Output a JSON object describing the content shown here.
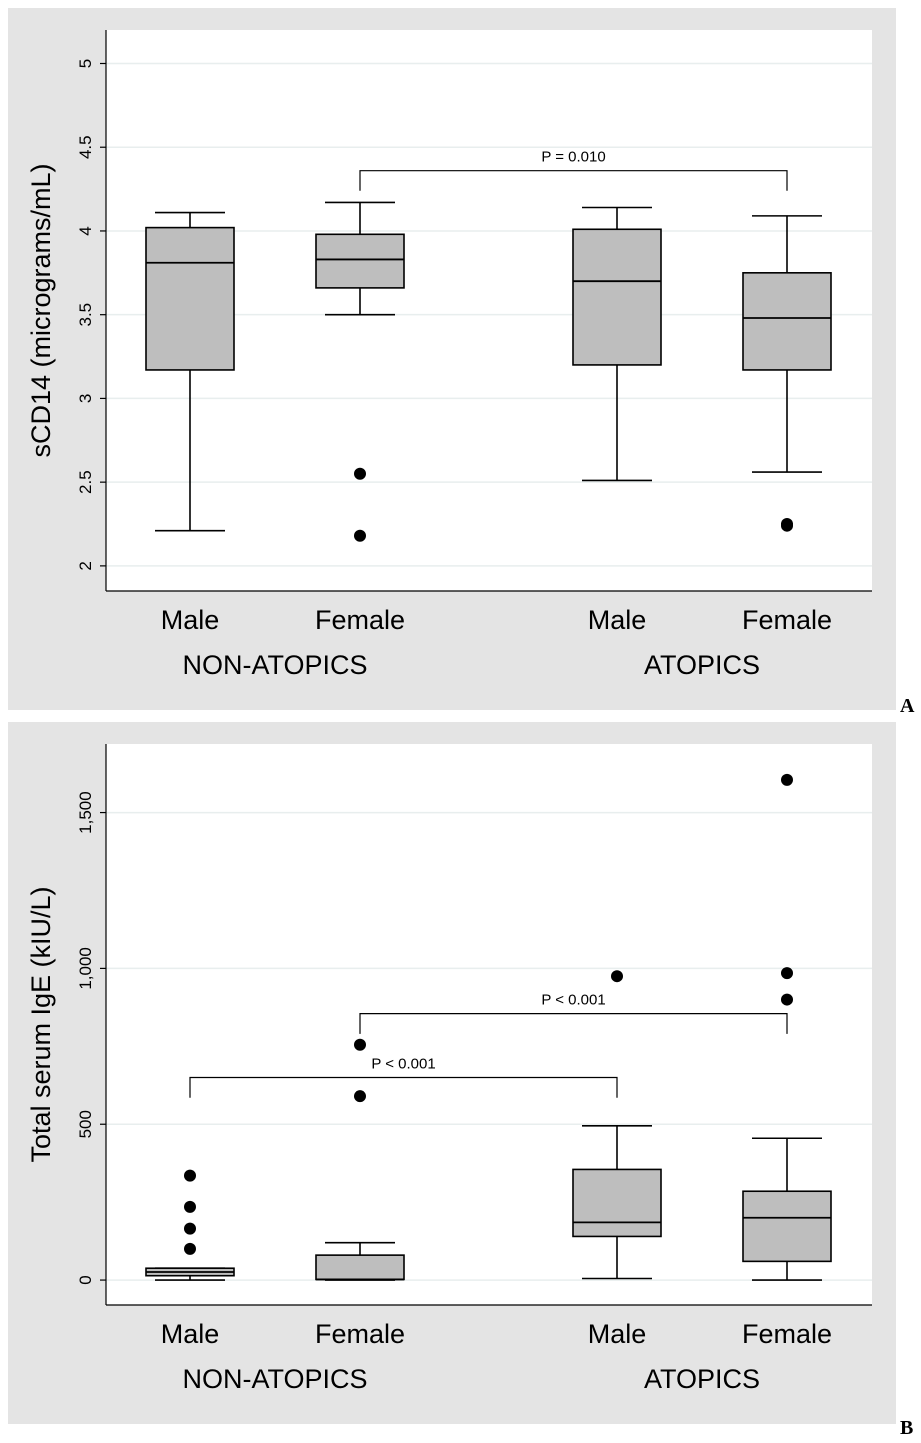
{
  "colors": {
    "panel_bg": "#e4e4e4",
    "plot_bg": "#ffffff",
    "box_fill": "#bebebe",
    "grid": "#e8eeee",
    "ink": "#000000"
  },
  "chart_data": [
    {
      "type": "box",
      "panel_letter": "A",
      "title": "",
      "ylabel": "sCD14 (micrograms/mL)",
      "ylim": [
        1.85,
        5.2
      ],
      "yticks": [
        2,
        2.5,
        3,
        3.5,
        4,
        4.5,
        5
      ],
      "ytick_labels": [
        "2",
        "2.5",
        "3",
        "3.5",
        "4",
        "4.5",
        "5"
      ],
      "grid": true,
      "groups": [
        {
          "label": "NON-ATOPICS",
          "categories": [
            "Male",
            "Female"
          ]
        },
        {
          "label": "ATOPICS",
          "categories": [
            "Male",
            "Female"
          ]
        }
      ],
      "boxes": [
        {
          "group": "NON-ATOPICS",
          "category": "Male",
          "min": 2.21,
          "q1": 3.17,
          "median": 3.81,
          "q3": 4.02,
          "max": 4.11,
          "outliers": []
        },
        {
          "group": "NON-ATOPICS",
          "category": "Female",
          "min": 3.5,
          "q1": 3.66,
          "median": 3.83,
          "q3": 3.98,
          "max": 4.17,
          "outliers": [
            2.55,
            2.18
          ]
        },
        {
          "group": "ATOPICS",
          "category": "Male",
          "min": 2.51,
          "q1": 3.2,
          "median": 3.7,
          "q3": 4.01,
          "max": 4.14,
          "outliers": []
        },
        {
          "group": "ATOPICS",
          "category": "Female",
          "min": 2.56,
          "q1": 3.17,
          "median": 3.48,
          "q3": 3.75,
          "max": 4.09,
          "outliers": [
            2.25,
            2.24
          ]
        }
      ],
      "annotations": [
        {
          "text": "P = 0.010",
          "from_box": 1,
          "to_box": 3,
          "y": 4.36,
          "drop_to": 4.24
        }
      ]
    },
    {
      "type": "box",
      "panel_letter": "B",
      "title": "",
      "ylabel": "Total serum IgE (kIU/L)",
      "ylim": [
        -80,
        1720
      ],
      "yticks": [
        0,
        500,
        1000,
        1500
      ],
      "ytick_labels": [
        "0",
        "500",
        "1,000",
        "1,500"
      ],
      "grid": true,
      "groups": [
        {
          "label": "NON-ATOPICS",
          "categories": [
            "Male",
            "Female"
          ]
        },
        {
          "label": "ATOPICS",
          "categories": [
            "Male",
            "Female"
          ]
        }
      ],
      "boxes": [
        {
          "group": "NON-ATOPICS",
          "category": "Male",
          "min": 0,
          "q1": 14,
          "median": 26,
          "q3": 38,
          "max": 38,
          "outliers": [
            335,
            235,
            165,
            100
          ]
        },
        {
          "group": "NON-ATOPICS",
          "category": "Female",
          "min": 0,
          "q1": 2,
          "median": 2,
          "q3": 80,
          "max": 120,
          "outliers": [
            755,
            590
          ]
        },
        {
          "group": "ATOPICS",
          "category": "Male",
          "min": 5,
          "q1": 140,
          "median": 185,
          "q3": 355,
          "max": 495,
          "outliers": [
            975
          ]
        },
        {
          "group": "ATOPICS",
          "category": "Female",
          "min": 0,
          "q1": 60,
          "median": 200,
          "q3": 285,
          "max": 455,
          "outliers": [
            1605,
            985,
            900
          ]
        }
      ],
      "annotations": [
        {
          "text": "P < 0.001",
          "from_box": 1,
          "to_box": 3,
          "y": 855,
          "drop_to": 790
        },
        {
          "text": "P < 0.001",
          "from_box": 0,
          "to_box": 2,
          "y": 650,
          "drop_to": 585
        }
      ]
    }
  ]
}
